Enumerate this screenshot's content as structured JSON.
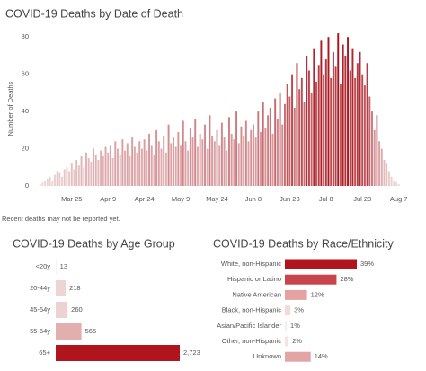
{
  "chart_data": [
    {
      "type": "bar",
      "title": "COVID-19 Deaths by Date of Death",
      "y_label": "Number of Deaths",
      "note": "Recent deaths may not be reported yet.",
      "categories": [
        null,
        null,
        null,
        null,
        null,
        null,
        null,
        null,
        null,
        null,
        null,
        null,
        null,
        null,
        null,
        "Mar 25",
        null,
        null,
        null,
        null,
        null,
        null,
        null,
        null,
        null,
        null,
        null,
        null,
        null,
        null,
        "Apr 9",
        null,
        null,
        null,
        null,
        null,
        null,
        null,
        null,
        null,
        null,
        null,
        null,
        null,
        null,
        "Apr 24",
        null,
        null,
        null,
        null,
        null,
        null,
        null,
        null,
        null,
        null,
        null,
        null,
        null,
        null,
        "May 9",
        null,
        null,
        null,
        null,
        null,
        null,
        null,
        null,
        null,
        null,
        null,
        null,
        null,
        null,
        "May 24",
        null,
        null,
        null,
        null,
        null,
        null,
        null,
        null,
        null,
        null,
        null,
        null,
        null,
        null,
        "Jun 8",
        null,
        null,
        null,
        null,
        null,
        null,
        null,
        null,
        null,
        null,
        null,
        null,
        null,
        null,
        "Jun 23",
        null,
        null,
        null,
        null,
        null,
        null,
        null,
        null,
        null,
        null,
        null,
        null,
        null,
        null,
        "Jul 8",
        null,
        null,
        null,
        null,
        null,
        null,
        null,
        null,
        null,
        null,
        null,
        null,
        null,
        null,
        "Jul 23",
        null,
        null,
        null,
        null,
        null,
        null,
        null,
        null,
        null,
        null,
        null,
        null,
        null,
        null,
        "Aug 7"
      ],
      "values": [
        0,
        0,
        1,
        2,
        3,
        4,
        5,
        3,
        6,
        8,
        7,
        5,
        9,
        10,
        8,
        12,
        9,
        14,
        11,
        16,
        10,
        18,
        15,
        13,
        20,
        17,
        14,
        19,
        16,
        21,
        18,
        22,
        15,
        24,
        20,
        17,
        25,
        19,
        23,
        16,
        26,
        21,
        18,
        24,
        20,
        25,
        19,
        28,
        22,
        17,
        30,
        24,
        20,
        27,
        18,
        33,
        23,
        26,
        21,
        29,
        22,
        35,
        24,
        19,
        31,
        26,
        36,
        21,
        28,
        25,
        33,
        20,
        38,
        27,
        24,
        30,
        22,
        34,
        26,
        19,
        37,
        28,
        25,
        40,
        23,
        32,
        27,
        35,
        24,
        30,
        33,
        26,
        40,
        29,
        45,
        31,
        38,
        42,
        28,
        47,
        36,
        50,
        33,
        44,
        55,
        48,
        60,
        42,
        66,
        52,
        58,
        45,
        70,
        62,
        50,
        74,
        56,
        65,
        78,
        60,
        68,
        80,
        58,
        72,
        64,
        82,
        55,
        76,
        70,
        80,
        62,
        74,
        58,
        66,
        72,
        60,
        54,
        66,
        48,
        40,
        30,
        38,
        24,
        20,
        14,
        12,
        8,
        5,
        3,
        2,
        1
      ],
      "color_scale": [
        "#efdcdc",
        "#a8101a"
      ],
      "ylim": [
        0,
        83
      ],
      "yticks": [
        0,
        20,
        40,
        60,
        80
      ],
      "grid": false
    },
    {
      "type": "hbar",
      "title": "COVID-19 Deaths by Age Group",
      "categories": [
        "<20y",
        "20-44y",
        "45-54y",
        "55-64y",
        "65+"
      ],
      "values": [
        13,
        218,
        260,
        565,
        2723
      ],
      "value_labels": [
        "13",
        "218",
        "260",
        "565",
        "2,723"
      ],
      "colors": [
        "#f6e8e8",
        "#eed5d5",
        "#ecd2d2",
        "#e2aeae",
        "#b0141d"
      ]
    },
    {
      "type": "hbar",
      "title": "COVID-19 Deaths by Race/Ethnicity",
      "categories": [
        "White, non-Hispanic",
        "Hispanic or Latino",
        "Native American",
        "Black, non-Hispanic",
        "Asian/Pacific Islander",
        "Other, non-Hispanic",
        "Unknown"
      ],
      "values": [
        39,
        28,
        12,
        3,
        1,
        2,
        14
      ],
      "value_labels": [
        "39%",
        "28%",
        "12%",
        "3%",
        "1%",
        "2%",
        "14%"
      ],
      "colors": [
        "#b0141d",
        "#c9454c",
        "#e6a2a2",
        "#f3dada",
        "#f8eeee",
        "#f5e3e3",
        "#e2a4a4"
      ]
    }
  ]
}
